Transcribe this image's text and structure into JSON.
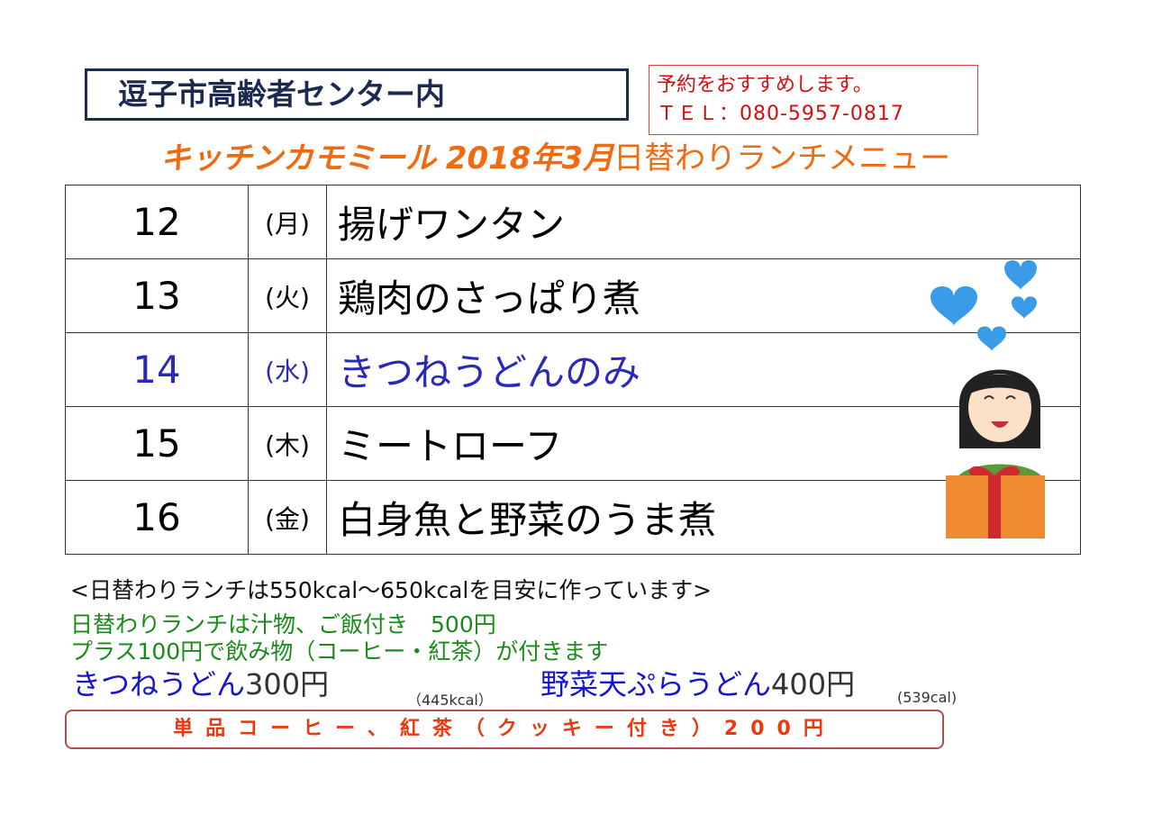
{
  "venue": "逗子市高齢者センター内",
  "contact": {
    "note": "予約をおすすめします。",
    "tel": "ＴＥＬ：080-5957-0817"
  },
  "title": {
    "brand": "キッチンカモミール",
    "month": "2018年3月",
    "subtitle": "日替わりランチメニュー"
  },
  "menu": [
    {
      "date": "12",
      "weekday": "(月)",
      "dish": "揚げワンタン"
    },
    {
      "date": "13",
      "weekday": "(火)",
      "dish": "鶏肉のさっぱり煮"
    },
    {
      "date": "14",
      "weekday": "(水)",
      "dish": "きつねうどんのみ"
    },
    {
      "date": "15",
      "weekday": "(木)",
      "dish": "ミートローフ"
    },
    {
      "date": "16",
      "weekday": "(金)",
      "dish": "白身魚と野菜のうま煮"
    }
  ],
  "highlight_color": "#2a2ab8",
  "notes": {
    "calorie": "<日替わりランチは550kcal～650kcalを目安に作っています>",
    "set": "日替わりランチは汁物、ご飯付き　500円",
    "drink": "プラス100円で飲み物（コーヒー・紅茶）が付きます"
  },
  "udon": [
    {
      "name": "きつねうどん",
      "price": "300円",
      "kcal": "（445kcal）"
    },
    {
      "name": "野菜天ぷらうどん",
      "price": "400円",
      "kcal": "(539cal)"
    }
  ],
  "single": "単品コーヒー、紅茶（クッキー付き）200円",
  "illustration": "woman-with-gift-and-hearts"
}
